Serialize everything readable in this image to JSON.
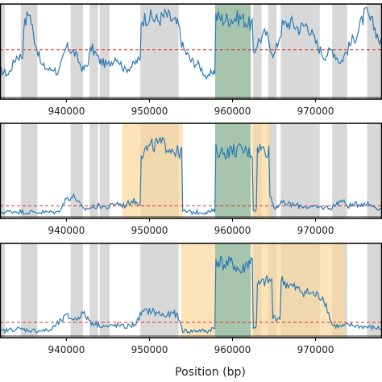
{
  "figure": {
    "xlabel": "Position (bp)"
  },
  "colors": {
    "signal": "#2b79b5",
    "threshold": "#e0302c",
    "gray_region": "#d8d8d8",
    "orange_region": "#fbd99a",
    "green_region": "#4f8c5a",
    "axis": "#000000"
  },
  "chart_data": [
    {
      "type": "line",
      "panel": "top",
      "xlim": [
        932000,
        978000
      ],
      "x_ticks": [
        940000,
        950000,
        960000,
        970000
      ],
      "x_tick_labels": [
        "940000",
        "950000",
        "960000",
        "970000"
      ],
      "ylim": [
        0,
        1
      ],
      "threshold": 0.52,
      "gray_regions": [
        [
          931500,
          932600
        ],
        [
          934500,
          936500
        ],
        [
          940500,
          942000
        ],
        [
          942800,
          943800
        ],
        [
          944000,
          945200
        ],
        [
          948900,
          953500
        ],
        [
          962500,
          963500
        ],
        [
          964300,
          965300
        ],
        [
          965800,
          970500
        ],
        [
          972000,
          973800
        ],
        [
          976200,
          978000
        ]
      ],
      "orange_regions": [],
      "green_regions": [
        [
          957900,
          962200
        ]
      ],
      "series": [
        {
          "x": [
            932000,
            933000,
            934000,
            935000,
            935500,
            936000,
            937000,
            938000,
            938500,
            939000,
            940000,
            940500,
            941000,
            942000,
            942500,
            943000,
            944000,
            945000,
            946000,
            947000,
            948000,
            948500,
            949000,
            950000,
            951000,
            952000,
            953000,
            953500,
            954000,
            955000,
            956000,
            957000,
            957500,
            958000,
            959000,
            960000,
            961000,
            962000,
            962500,
            963000,
            964000,
            965000,
            966000,
            967000,
            968000,
            969000,
            970000,
            971000,
            972000,
            973000,
            974000,
            975000,
            976000,
            977000,
            978000
          ],
          "y": [
            0.3,
            0.25,
            0.45,
            0.8,
            0.95,
            0.7,
            0.35,
            0.3,
            0.32,
            0.25,
            0.55,
            0.52,
            0.48,
            0.3,
            0.35,
            0.55,
            0.4,
            0.35,
            0.45,
            0.3,
            0.35,
            0.4,
            0.85,
            0.88,
            0.84,
            0.9,
            0.82,
            0.78,
            0.55,
            0.4,
            0.35,
            0.2,
            0.28,
            0.88,
            0.85,
            0.86,
            0.87,
            0.8,
            0.45,
            0.6,
            0.7,
            0.45,
            0.78,
            0.82,
            0.75,
            0.8,
            0.6,
            0.45,
            0.52,
            0.38,
            0.55,
            0.7,
            0.92,
            0.78,
            0.55
          ]
        }
      ]
    },
    {
      "type": "line",
      "panel": "middle",
      "xlim": [
        932000,
        978000
      ],
      "x_ticks": [
        940000,
        950000,
        960000,
        970000
      ],
      "x_tick_labels": [
        "940000",
        "950000",
        "960000",
        "970000"
      ],
      "ylim": [
        0,
        1
      ],
      "threshold": 0.12,
      "gray_regions": [
        [
          931500,
          932600
        ],
        [
          934500,
          936500
        ],
        [
          940500,
          942000
        ],
        [
          942800,
          943800
        ],
        [
          944000,
          945200
        ],
        [
          948900,
          953500
        ],
        [
          962500,
          963500
        ],
        [
          964300,
          965300
        ],
        [
          965800,
          970500
        ],
        [
          972000,
          973800
        ],
        [
          976200,
          978000
        ]
      ],
      "orange_regions": [
        [
          946700,
          954000
        ],
        [
          962300,
          964500
        ]
      ],
      "green_regions": [
        [
          957900,
          962200
        ]
      ],
      "series": [
        {
          "x": [
            932000,
            934000,
            935000,
            937000,
            939000,
            940000,
            941000,
            942000,
            943000,
            944000,
            945000,
            946000,
            947000,
            948000,
            948500,
            949000,
            950000,
            951000,
            952000,
            953000,
            953500,
            954000,
            955000,
            956000,
            957000,
            957500,
            958000,
            959000,
            960000,
            961000,
            962000,
            962500,
            963000,
            964000,
            964500,
            965000,
            966000,
            968000,
            970000,
            972000,
            973000,
            974000,
            976000,
            978000
          ],
          "y": [
            0.05,
            0.06,
            0.05,
            0.05,
            0.05,
            0.2,
            0.22,
            0.08,
            0.1,
            0.12,
            0.1,
            0.15,
            0.12,
            0.18,
            0.15,
            0.7,
            0.75,
            0.8,
            0.78,
            0.72,
            0.7,
            0.06,
            0.05,
            0.05,
            0.05,
            0.06,
            0.72,
            0.7,
            0.72,
            0.73,
            0.7,
            0.08,
            0.76,
            0.72,
            0.25,
            0.1,
            0.15,
            0.12,
            0.1,
            0.1,
            0.18,
            0.12,
            0.15,
            0.08
          ]
        }
      ]
    },
    {
      "type": "line",
      "panel": "bottom",
      "xlim": [
        932000,
        978000
      ],
      "x_ticks": [
        940000,
        950000,
        960000,
        970000
      ],
      "x_tick_labels": [
        "940000",
        "950000",
        "960000",
        "970000"
      ],
      "ylim": [
        0,
        1
      ],
      "threshold": 0.15,
      "gray_regions": [
        [
          931500,
          932600
        ],
        [
          934500,
          936500
        ],
        [
          940500,
          942000
        ],
        [
          942800,
          943800
        ],
        [
          944000,
          945200
        ],
        [
          948900,
          953500
        ],
        [
          962500,
          963500
        ],
        [
          964300,
          965300
        ],
        [
          965800,
          970500
        ],
        [
          972000,
          973800
        ],
        [
          976200,
          978000
        ]
      ],
      "orange_regions": [
        [
          953800,
          957900
        ],
        [
          962300,
          973500
        ]
      ],
      "green_regions": [
        [
          957900,
          962200
        ]
      ],
      "series": [
        {
          "x": [
            932000,
            934000,
            936000,
            938000,
            940000,
            941000,
            942000,
            943000,
            944000,
            945000,
            946000,
            947000,
            948000,
            948500,
            949000,
            950000,
            951000,
            952000,
            953000,
            953500,
            954000,
            955000,
            956000,
            957000,
            957500,
            958000,
            959000,
            960000,
            961000,
            962000,
            962500,
            963000,
            964000,
            965000,
            966000,
            967000,
            968000,
            969000,
            970000,
            971000,
            972000,
            973000,
            974000,
            976000,
            978000
          ],
          "y": [
            0.05,
            0.08,
            0.06,
            0.06,
            0.22,
            0.18,
            0.25,
            0.15,
            0.12,
            0.1,
            0.12,
            0.1,
            0.12,
            0.15,
            0.25,
            0.28,
            0.25,
            0.22,
            0.25,
            0.2,
            0.06,
            0.05,
            0.06,
            0.05,
            0.08,
            0.85,
            0.78,
            0.8,
            0.7,
            0.82,
            0.1,
            0.55,
            0.6,
            0.2,
            0.6,
            0.55,
            0.5,
            0.48,
            0.45,
            0.42,
            0.12,
            0.1,
            0.12,
            0.1,
            0.08
          ]
        }
      ]
    }
  ]
}
